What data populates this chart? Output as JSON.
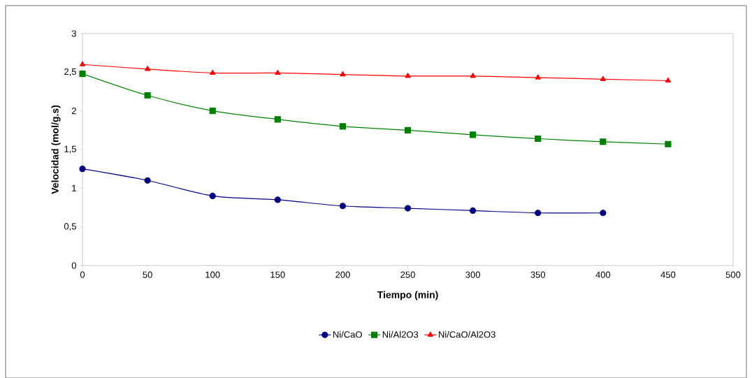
{
  "chart_data": {
    "type": "line",
    "xlabel": "Tiempo (min)",
    "ylabel": "Velocidad (mol/g.s)",
    "xlim": [
      0,
      500
    ],
    "xticks": [
      0,
      50,
      100,
      150,
      200,
      250,
      300,
      350,
      400,
      450,
      500
    ],
    "ylim": [
      0,
      3
    ],
    "yticks": [
      {
        "value": 0,
        "label": "0"
      },
      {
        "value": 0.5,
        "label": "0,5"
      },
      {
        "value": 1,
        "label": "1"
      },
      {
        "value": 1.5,
        "label": "1,5"
      },
      {
        "value": 2,
        "label": "2"
      },
      {
        "value": 2.5,
        "label": "2,5"
      },
      {
        "value": 3,
        "label": "3"
      }
    ],
    "grid": false,
    "legend": "bottom",
    "series": [
      {
        "name": "Ni/CaO",
        "color": "#000080",
        "marker": "circle",
        "x": [
          0,
          50,
          100,
          150,
          200,
          250,
          300,
          350,
          400
        ],
        "values": [
          1.25,
          1.1,
          0.9,
          0.85,
          0.77,
          0.74,
          0.71,
          0.68,
          0.68
        ]
      },
      {
        "name": "Ni/Al2O3",
        "color": "#008000",
        "marker": "square",
        "x": [
          0,
          50,
          100,
          150,
          200,
          250,
          300,
          350,
          400,
          450
        ],
        "values": [
          2.48,
          2.2,
          2.0,
          1.89,
          1.8,
          1.75,
          1.69,
          1.64,
          1.6,
          1.57
        ]
      },
      {
        "name": "Ni/CaO/Al2O3",
        "color": "#ff0000",
        "marker": "triangle",
        "x": [
          0,
          50,
          100,
          150,
          200,
          250,
          300,
          350,
          400,
          450
        ],
        "values": [
          2.6,
          2.54,
          2.49,
          2.49,
          2.47,
          2.45,
          2.45,
          2.43,
          2.41,
          2.39
        ]
      }
    ]
  }
}
